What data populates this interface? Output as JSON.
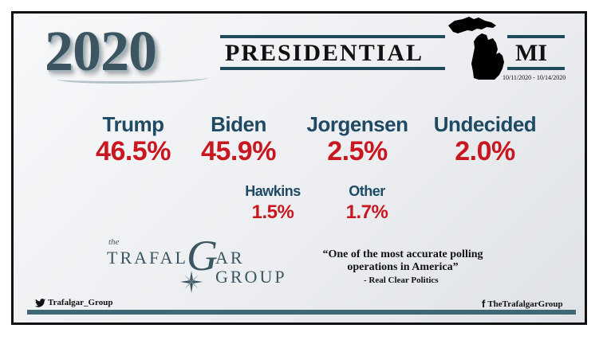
{
  "header": {
    "year": "2020",
    "title": "PRESIDENTIAL",
    "state": "MI",
    "dates": "10/11/2020 - 10/14/2020"
  },
  "candidates": [
    {
      "name": "Trump",
      "pct": "46.5%"
    },
    {
      "name": "Biden",
      "pct": "45.9%"
    },
    {
      "name": "Jorgensen",
      "pct": "2.5%"
    },
    {
      "name": "Undecided",
      "pct": "2.0%"
    },
    {
      "name": "Hawkins",
      "pct": "1.5%"
    },
    {
      "name": "Other",
      "pct": "1.7%"
    }
  ],
  "logo": {
    "the": "the",
    "word1": "TRAFAL",
    "g": "G",
    "word2": "AR",
    "word3": "GROUP"
  },
  "quote": {
    "text": "“One of the most accurate polling operations in America”",
    "source": "- Real Clear Politics"
  },
  "social": {
    "twitter": "Trafalgar_Group",
    "facebook": "TheTrafalgarGroup"
  },
  "colors": {
    "name": "#1e4a63",
    "pct": "#c8171e",
    "accent_bar": "#1f4a5a"
  }
}
